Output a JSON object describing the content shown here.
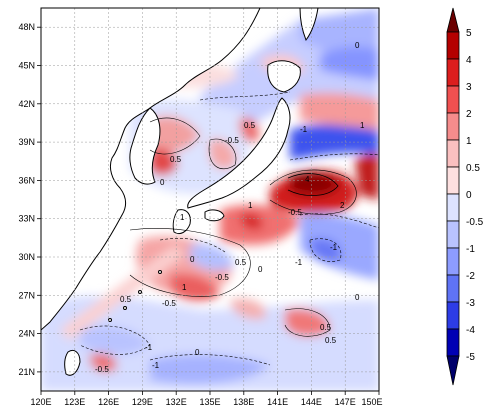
{
  "map": {
    "lon_labels": [
      "120E",
      "123E",
      "126E",
      "129E",
      "132E",
      "135E",
      "138E",
      "141E",
      "144E",
      "147E",
      "150E"
    ],
    "lat_labels": [
      "48N",
      "45N",
      "42N",
      "39N",
      "36N",
      "33N",
      "30N",
      "27N",
      "24N",
      "21N"
    ],
    "extent": {
      "lon_min": 120,
      "lon_max": 150,
      "lat_min": 20,
      "lat_max": 50
    },
    "colorbar": {
      "levels": [
        "5",
        "4",
        "3",
        "2",
        "1",
        "0.5",
        "0",
        "-0.5",
        "-1",
        "-2",
        "-3",
        "-4",
        "-5"
      ],
      "colors": [
        "#6b0000",
        "#b40000",
        "#dc1e1e",
        "#f05050",
        "#f58c8c",
        "#fac0c0",
        "#fde0e0",
        "#dde3ff",
        "#b9c3ff",
        "#8d9cff",
        "#5f73f5",
        "#2d3ce6",
        "#0000b4",
        "#00006b"
      ]
    },
    "contour_labels": [
      "0",
      "-0.5",
      "0.5",
      "1",
      "-1",
      "4",
      "2",
      "0",
      "-0.5",
      "0.5",
      "1",
      "-1",
      "0",
      "0.5",
      "-0.5",
      "-1",
      "1",
      "0",
      "-0.5",
      "0.5",
      "-1",
      "0",
      "0.5",
      "-0.5",
      "1",
      "-1",
      "0",
      "0.5"
    ]
  }
}
